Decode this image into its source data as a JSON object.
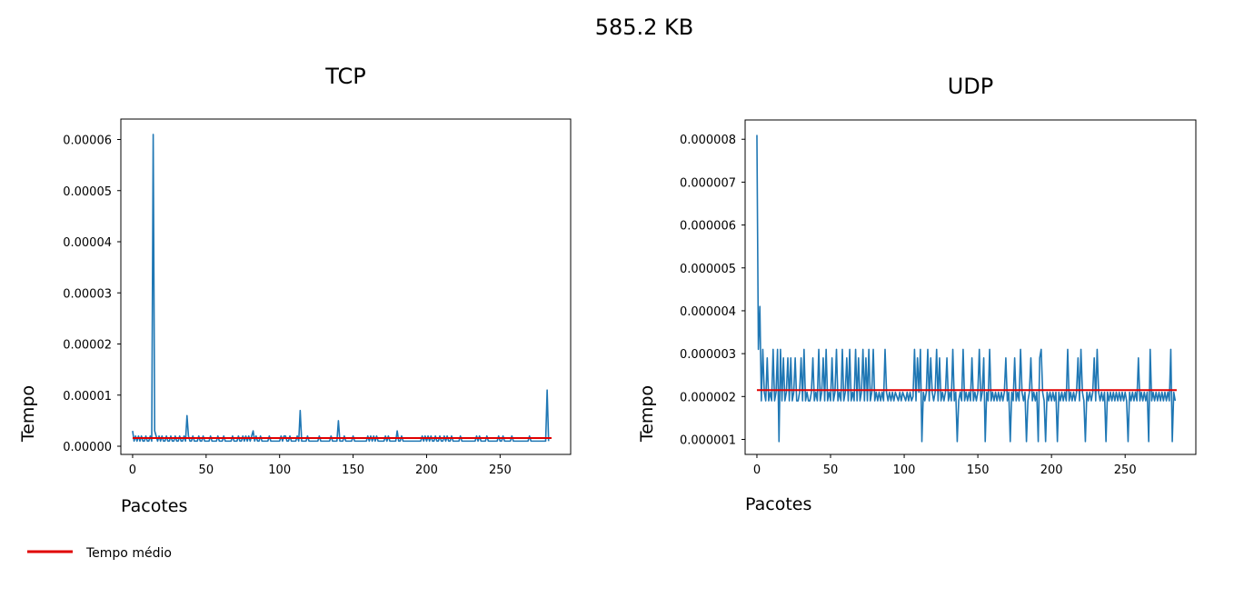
{
  "figure": {
    "suptitle": "585.2 KB",
    "legend": {
      "label": "Tempo médio",
      "color": "#e00000",
      "placement": "bottom-left"
    }
  },
  "chart_data": [
    {
      "type": "line",
      "title": "TCP",
      "xlabel": "Pacotes",
      "ylabel": "Tempo",
      "xlim": [
        -8,
        298
      ],
      "ylim": [
        -1.6e-06,
        6.4e-05
      ],
      "xticks": [
        0,
        50,
        100,
        150,
        200,
        250
      ],
      "xtick_labels": [
        "0",
        "50",
        "100",
        "150",
        "200",
        "250"
      ],
      "yticks": [
        0,
        1e-05,
        2e-05,
        3e-05,
        4e-05,
        5e-05,
        6e-05
      ],
      "ytick_labels": [
        "0.00000",
        "0.00001",
        "0.00002",
        "0.00003",
        "0.00004",
        "0.00005",
        "0.00006"
      ],
      "grid": false,
      "series": [
        {
          "name": "",
          "color": "#1f77b4",
          "x_start": 0,
          "x_step": 1,
          "values": [
            3e-06,
            1e-06,
            2e-06,
            1e-06,
            2e-06,
            1e-06,
            2e-06,
            1e-06,
            1e-06,
            2e-06,
            1e-06,
            1e-06,
            2e-06,
            1e-06,
            6.1e-05,
            3e-06,
            2e-06,
            1e-06,
            2e-06,
            1e-06,
            2e-06,
            1e-06,
            1e-06,
            2e-06,
            1e-06,
            1e-06,
            2e-06,
            1e-06,
            1e-06,
            2e-06,
            1e-06,
            1e-06,
            2e-06,
            1e-06,
            1e-06,
            2e-06,
            1e-06,
            6e-06,
            2e-06,
            1e-06,
            1e-06,
            2e-06,
            1e-06,
            1e-06,
            1e-06,
            2e-06,
            1e-06,
            1e-06,
            2e-06,
            1e-06,
            1e-06,
            1e-06,
            1e-06,
            2e-06,
            1e-06,
            1e-06,
            1e-06,
            1e-06,
            2e-06,
            1e-06,
            1e-06,
            1e-06,
            2e-06,
            1e-06,
            1e-06,
            1e-06,
            1e-06,
            1e-06,
            2e-06,
            1e-06,
            1e-06,
            1e-06,
            2e-06,
            1e-06,
            1e-06,
            2e-06,
            1e-06,
            2e-06,
            1e-06,
            2e-06,
            1e-06,
            2e-06,
            3e-06,
            1e-06,
            2e-06,
            1e-06,
            1e-06,
            2e-06,
            1e-06,
            1e-06,
            1e-06,
            1e-06,
            1e-06,
            2e-06,
            1e-06,
            1e-06,
            1e-06,
            1e-06,
            1e-06,
            1e-06,
            1e-06,
            2e-06,
            1e-06,
            2e-06,
            2e-06,
            1e-06,
            1e-06,
            2e-06,
            1e-06,
            1e-06,
            1e-06,
            1e-06,
            2e-06,
            1e-06,
            7e-06,
            1e-06,
            1e-06,
            1e-06,
            1e-06,
            2e-06,
            1e-06,
            1e-06,
            1e-06,
            1e-06,
            1e-06,
            1e-06,
            1e-06,
            2e-06,
            1e-06,
            1e-06,
            1e-06,
            1e-06,
            1e-06,
            1e-06,
            1e-06,
            2e-06,
            1e-06,
            1e-06,
            1e-06,
            1e-06,
            5e-06,
            1e-06,
            1e-06,
            1e-06,
            2e-06,
            1e-06,
            1e-06,
            1e-06,
            1e-06,
            1e-06,
            2e-06,
            1e-06,
            1e-06,
            1e-06,
            1e-06,
            1e-06,
            1e-06,
            1e-06,
            1e-06,
            1e-06,
            2e-06,
            1e-06,
            2e-06,
            1e-06,
            2e-06,
            1e-06,
            2e-06,
            1e-06,
            1e-06,
            1e-06,
            1e-06,
            1e-06,
            2e-06,
            1e-06,
            2e-06,
            1e-06,
            1e-06,
            1e-06,
            1e-06,
            1e-06,
            3e-06,
            1e-06,
            1e-06,
            2e-06,
            1e-06,
            1e-06,
            1e-06,
            1e-06,
            1e-06,
            1e-06,
            1e-06,
            1e-06,
            1e-06,
            1e-06,
            1e-06,
            1e-06,
            1e-06,
            2e-06,
            1e-06,
            2e-06,
            1e-06,
            2e-06,
            1e-06,
            2e-06,
            1e-06,
            1e-06,
            2e-06,
            1e-06,
            1e-06,
            2e-06,
            1e-06,
            1e-06,
            2e-06,
            1e-06,
            2e-06,
            1e-06,
            1e-06,
            2e-06,
            1e-06,
            1e-06,
            1e-06,
            1e-06,
            1e-06,
            2e-06,
            1e-06,
            1e-06,
            1e-06,
            1e-06,
            1e-06,
            1e-06,
            1e-06,
            1e-06,
            1e-06,
            1e-06,
            2e-06,
            1e-06,
            2e-06,
            1e-06,
            1e-06,
            1e-06,
            1e-06,
            2e-06,
            1e-06,
            1e-06,
            1e-06,
            1e-06,
            1e-06,
            1e-06,
            1e-06,
            2e-06,
            1e-06,
            1e-06,
            2e-06,
            1e-06,
            1e-06,
            1e-06,
            1e-06,
            1e-06,
            2e-06,
            1e-06,
            1e-06,
            1e-06,
            1e-06,
            1e-06,
            1e-06,
            1e-06,
            1e-06,
            1e-06,
            1e-06,
            1e-06,
            2e-06,
            1e-06,
            1e-06,
            1e-06,
            1e-06,
            1e-06,
            1e-06,
            1e-06,
            1e-06,
            1e-06,
            1e-06,
            1e-06,
            1.1e-05,
            1e-06
          ]
        },
        {
          "name": "Tempo médio",
          "color": "#e00000",
          "x": [
            0,
            285
          ],
          "values": [
            1.6e-06,
            1.6e-06
          ]
        }
      ]
    },
    {
      "type": "line",
      "title": "UDP",
      "xlabel": "Pacotes",
      "ylabel": "Tempo",
      "xlim": [
        -8,
        298
      ],
      "ylim": [
        6.5e-07,
        8.45e-06
      ],
      "xticks": [
        0,
        50,
        100,
        150,
        200,
        250
      ],
      "xtick_labels": [
        "0",
        "50",
        "100",
        "150",
        "200",
        "250"
      ],
      "yticks": [
        1e-06,
        2e-06,
        3e-06,
        4e-06,
        5e-06,
        6e-06,
        7e-06,
        8e-06
      ],
      "ytick_labels": [
        "0.000001",
        "0.000002",
        "0.000003",
        "0.000004",
        "0.000005",
        "0.000006",
        "0.000007",
        "0.000008"
      ],
      "grid": false,
      "series": [
        {
          "name": "",
          "color": "#1f77b4",
          "x_start": 0,
          "x_step": 1,
          "values": [
            8.1e-06,
            3.1e-06,
            4.1e-06,
            1.9e-06,
            3.1e-06,
            2.1e-06,
            1.9e-06,
            2.9e-06,
            1.9e-06,
            2.1e-06,
            1.9e-06,
            3.1e-06,
            1.9e-06,
            2.1e-06,
            3.1e-06,
            9.5e-07,
            3.1e-06,
            1.9e-06,
            2.9e-06,
            1.9e-06,
            2.1e-06,
            2.9e-06,
            1.9e-06,
            2.9e-06,
            1.9e-06,
            2.1e-06,
            2.9e-06,
            1.9e-06,
            1.9e-06,
            2.1e-06,
            2.9e-06,
            1.9e-06,
            3.1e-06,
            1.9e-06,
            2.1e-06,
            1.9e-06,
            1.9e-06,
            2.1e-06,
            2.9e-06,
            1.9e-06,
            2.1e-06,
            1.9e-06,
            3.1e-06,
            1.9e-06,
            2.1e-06,
            2.9e-06,
            1.9e-06,
            3.1e-06,
            1.9e-06,
            2.1e-06,
            1.9e-06,
            2.9e-06,
            1.9e-06,
            2.1e-06,
            3.1e-06,
            1.9e-06,
            2.1e-06,
            1.9e-06,
            3.1e-06,
            1.9e-06,
            2.1e-06,
            2.9e-06,
            1.9e-06,
            3.1e-06,
            1.9e-06,
            2.1e-06,
            1.9e-06,
            3.1e-06,
            1.9e-06,
            2.9e-06,
            1.9e-06,
            2.1e-06,
            3.1e-06,
            1.9e-06,
            2.9e-06,
            1.9e-06,
            3.1e-06,
            1.9e-06,
            2.1e-06,
            3.1e-06,
            1.9e-06,
            2.1e-06,
            1.9e-06,
            2.1e-06,
            1.9e-06,
            2.1e-06,
            1.9e-06,
            3.1e-06,
            2.1e-06,
            1.9e-06,
            2.1e-06,
            1.9e-06,
            2.1e-06,
            1.9e-06,
            2.1e-06,
            2e-06,
            1.9e-06,
            2.1e-06,
            1.9e-06,
            2.1e-06,
            2e-06,
            1.9e-06,
            2.1e-06,
            1.9e-06,
            2.1e-06,
            1.9e-06,
            2e-06,
            3.1e-06,
            1.9e-06,
            2.9e-06,
            2.1e-06,
            3.1e-06,
            9.5e-07,
            2.1e-06,
            1.9e-06,
            2.1e-06,
            3.1e-06,
            1.9e-06,
            2.9e-06,
            2.1e-06,
            1.9e-06,
            2.1e-06,
            3.1e-06,
            1.9e-06,
            2.9e-06,
            1.9e-06,
            2.1e-06,
            1.9e-06,
            2.1e-06,
            2.9e-06,
            1.9e-06,
            2.1e-06,
            1.9e-06,
            3.1e-06,
            1.9e-06,
            2.1e-06,
            9.5e-07,
            1.9e-06,
            2.1e-06,
            1.9e-06,
            3.1e-06,
            1.9e-06,
            2.1e-06,
            1.9e-06,
            2.1e-06,
            1.9e-06,
            2.9e-06,
            1.9e-06,
            2.1e-06,
            1.9e-06,
            2.1e-06,
            3.1e-06,
            1.9e-06,
            2.1e-06,
            2.9e-06,
            9.5e-07,
            2.1e-06,
            1.9e-06,
            3.1e-06,
            1.9e-06,
            2.1e-06,
            1.9e-06,
            2.1e-06,
            1.9e-06,
            2.1e-06,
            1.9e-06,
            2.1e-06,
            1.9e-06,
            2.1e-06,
            2.9e-06,
            1.9e-06,
            2.1e-06,
            9.5e-07,
            2.1e-06,
            1.9e-06,
            2.9e-06,
            1.9e-06,
            2.1e-06,
            1.9e-06,
            3.1e-06,
            2.1e-06,
            1.9e-06,
            2.1e-06,
            9.5e-07,
            1.9e-06,
            2.1e-06,
            2.9e-06,
            1.9e-06,
            2.1e-06,
            1.9e-06,
            2.1e-06,
            9.5e-07,
            2.9e-06,
            3.1e-06,
            2.1e-06,
            1.9e-06,
            9.5e-07,
            2.1e-06,
            1.9e-06,
            2.1e-06,
            1.9e-06,
            2.1e-06,
            1.9e-06,
            2.1e-06,
            9.5e-07,
            2.1e-06,
            1.9e-06,
            2.1e-06,
            1.9e-06,
            2.1e-06,
            1.9e-06,
            3.1e-06,
            1.9e-06,
            2.1e-06,
            1.9e-06,
            2.1e-06,
            1.9e-06,
            2.1e-06,
            2.9e-06,
            1.9e-06,
            3.1e-06,
            2.1e-06,
            1.9e-06,
            9.5e-07,
            2.1e-06,
            1.9e-06,
            2.1e-06,
            1.9e-06,
            2.1e-06,
            2.9e-06,
            1.9e-06,
            3.1e-06,
            2.1e-06,
            1.9e-06,
            2.1e-06,
            1.9e-06,
            2.1e-06,
            9.5e-07,
            2.1e-06,
            1.9e-06,
            2.1e-06,
            1.9e-06,
            2.1e-06,
            1.9e-06,
            2.1e-06,
            1.9e-06,
            2.1e-06,
            1.9e-06,
            2.1e-06,
            1.9e-06,
            2.1e-06,
            1.9e-06,
            9.5e-07,
            2.1e-06,
            1.9e-06,
            2.1e-06,
            1.9e-06,
            2.1e-06,
            1.9e-06,
            2.9e-06,
            1.9e-06,
            2.1e-06,
            1.9e-06,
            2.1e-06,
            1.9e-06,
            2.1e-06,
            9.5e-07,
            3.1e-06,
            1.9e-06,
            2.1e-06,
            1.9e-06,
            2.1e-06,
            1.9e-06,
            2.1e-06,
            1.9e-06,
            2.1e-06,
            1.9e-06,
            2.1e-06,
            1.9e-06,
            2.1e-06,
            1.9e-06,
            3.1e-06,
            9.5e-07,
            2.1e-06,
            1.9e-06
          ]
        },
        {
          "name": "Tempo médio",
          "color": "#e00000",
          "x": [
            0,
            285
          ],
          "values": [
            2.15e-06,
            2.15e-06
          ]
        }
      ]
    }
  ]
}
